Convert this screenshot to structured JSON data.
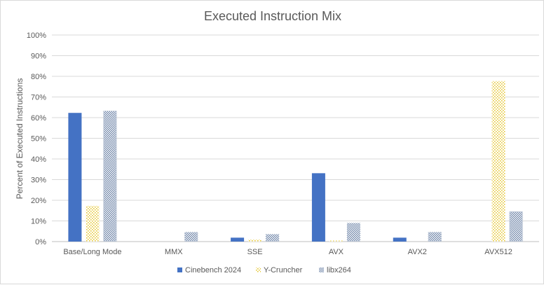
{
  "chart_data": {
    "type": "bar",
    "title": "Executed Instruction Mix",
    "xlabel": "",
    "ylabel": "Percent of Executed Instructions",
    "ylim": [
      0,
      100
    ],
    "yticks": [
      "0%",
      "10%",
      "20%",
      "30%",
      "40%",
      "50%",
      "60%",
      "70%",
      "80%",
      "90%",
      "100%"
    ],
    "categories": [
      "Base/Long Mode",
      "MMX",
      "SSE",
      "AVX",
      "AVX2",
      "AVX512"
    ],
    "series": [
      {
        "name": "Cinebench 2024",
        "values": [
          62.3,
          0,
          1.9,
          33.1,
          1.9,
          0
        ],
        "color": "#4472c4",
        "pattern": "solid"
      },
      {
        "name": "Y-Cruncher",
        "values": [
          17.3,
          0,
          1.0,
          0.5,
          0,
          77.7
        ],
        "color": "#ffd966",
        "pattern": "dots"
      },
      {
        "name": "libx264",
        "values": [
          63.3,
          4.6,
          3.6,
          9.0,
          4.6,
          14.6
        ],
        "color": "#8497b0",
        "pattern": "checker"
      }
    ],
    "grid": true,
    "legend": "bottom"
  }
}
